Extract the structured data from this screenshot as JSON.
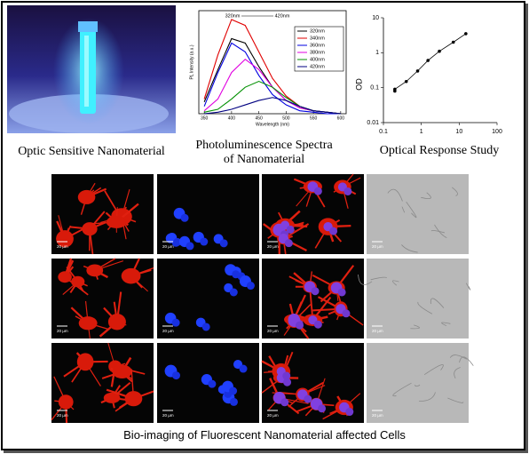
{
  "chart_data": [
    {
      "type": "line",
      "title": "Photoluminescence Spectra of Nanomaterial",
      "x_label": "Wavelength (nm)",
      "y_label": "PL Intensity (a.u.)",
      "annotations": [
        "320nm",
        "420nm"
      ],
      "x": [
        350,
        375,
        400,
        425,
        450,
        475,
        500,
        525,
        550,
        575,
        600
      ],
      "xlim": [
        340,
        610
      ],
      "xticks": [
        350,
        400,
        450,
        500,
        550,
        600
      ],
      "ylim": [
        0,
        70
      ],
      "series": [
        {
          "name": "320nm",
          "color": "#000000",
          "values": [
            8,
            30,
            51,
            48,
            32,
            18,
            9,
            4,
            2,
            1,
            0
          ]
        },
        {
          "name": "340nm",
          "color": "#e00000",
          "values": [
            10,
            40,
            64,
            60,
            42,
            24,
            12,
            5,
            2,
            1,
            0
          ]
        },
        {
          "name": "360nm",
          "color": "#0000e0",
          "values": [
            5,
            28,
            48,
            42,
            26,
            13,
            6,
            2,
            1,
            0,
            0
          ]
        },
        {
          "name": "380nm",
          "color": "#e000e0",
          "values": [
            2,
            10,
            28,
            37,
            30,
            18,
            9,
            4,
            2,
            1,
            0
          ]
        },
        {
          "name": "400nm",
          "color": "#009000",
          "values": [
            1,
            3,
            10,
            18,
            22,
            18,
            11,
            5,
            2,
            1,
            0
          ]
        },
        {
          "name": "420nm",
          "color": "#000080",
          "values": [
            0,
            1,
            3,
            6,
            9,
            11,
            9,
            5,
            2,
            1,
            0
          ]
        }
      ],
      "legend": "upper right"
    },
    {
      "type": "scatter",
      "title": "Optical Response Study",
      "y_label": "OD",
      "xscale": "log",
      "yscale": "log",
      "x": [
        0.2,
        0.2,
        0.4,
        0.8,
        1.5,
        3,
        7,
        15
      ],
      "values": [
        0.08,
        0.09,
        0.15,
        0.3,
        0.6,
        1.1,
        2,
        3.5
      ],
      "color": "#000000",
      "xlim": [
        0.1,
        100
      ],
      "xticks": [
        0.1,
        1,
        10,
        100
      ],
      "ylim": [
        0.01,
        10
      ],
      "yticks": [
        0.01,
        0.1,
        1,
        10
      ]
    }
  ],
  "photo": {
    "caption": "Optic Sensitive Nanomaterial"
  },
  "bioimaging": {
    "scale_bar": "20 µm",
    "caption": "Bio-imaging of Fluorescent Nanomaterial affected Cells"
  }
}
